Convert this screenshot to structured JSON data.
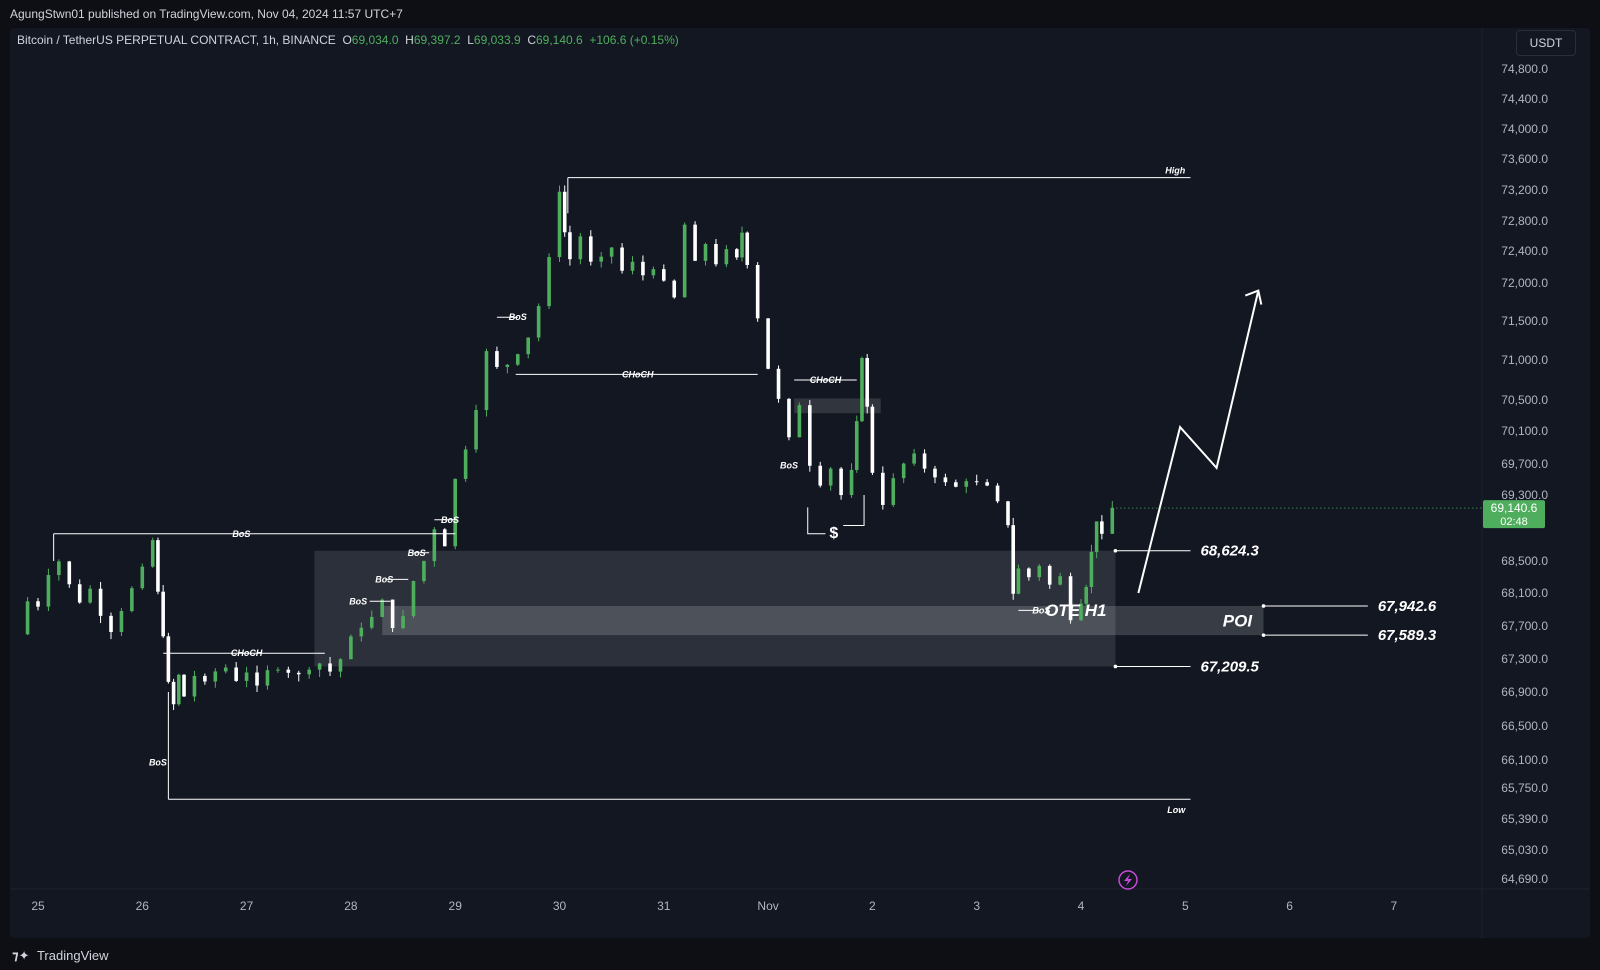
{
  "header": {
    "published_text": "AgungStwn01 published on TradingView.com, Nov 04, 2024 11:57 UTC+7"
  },
  "legend": {
    "symbol": "Bitcoin / TetherUS PERPETUAL CONTRACT, 1h, BINANCE",
    "o_label": "O",
    "o_value": "69,034.0",
    "h_label": "H",
    "h_value": "69,397.2",
    "l_label": "L",
    "l_value": "69,033.9",
    "c_label": "C",
    "c_value": "69,140.6",
    "change": "+106.6 (+0.15%)"
  },
  "currency": "USDT",
  "footer": {
    "brand": "TradingView"
  },
  "colors": {
    "up": "#4fae5d",
    "down": "#ffffff",
    "background": "#131722",
    "zone": "#ffffff"
  },
  "chart_data": {
    "type": "candlestick",
    "timeframe": "1h",
    "x_tick_labels": [
      "25",
      "26",
      "27",
      "28",
      "29",
      "30",
      "31",
      "Nov",
      "2",
      "3",
      "4",
      "5",
      "6",
      "7"
    ],
    "y_tick_labels": [
      "74,800.0",
      "74,400.0",
      "74,000.0",
      "73,600.0",
      "73,200.0",
      "72,800.0",
      "72,400.0",
      "72,000.0",
      "71,500.0",
      "71,000.0",
      "70,500.0",
      "70,100.0",
      "69,700.0",
      "69,300.0",
      "68,500.0",
      "68,100.0",
      "67,700.0",
      "67,300.0",
      "66,900.0",
      "66,500.0",
      "66,100.0",
      "65,750.0",
      "65,390.0",
      "65,030.0",
      "64,690.0"
    ],
    "current_price": {
      "value": "69,140.6",
      "countdown": "02:48"
    },
    "close_path": [
      [
        24.8,
        67600
      ],
      [
        24.9,
        68000
      ],
      [
        25.0,
        67950
      ],
      [
        25.1,
        68350
      ],
      [
        25.2,
        68500
      ],
      [
        25.3,
        68200
      ],
      [
        25.4,
        68000
      ],
      [
        25.5,
        68150
      ],
      [
        25.6,
        67850
      ],
      [
        25.7,
        67650
      ],
      [
        25.8,
        67900
      ],
      [
        25.9,
        68150
      ],
      [
        26.0,
        68400
      ],
      [
        26.1,
        68750
      ],
      [
        26.15,
        68100
      ],
      [
        26.2,
        67600
      ],
      [
        26.25,
        67000
      ],
      [
        26.3,
        66750
      ],
      [
        26.35,
        67100
      ],
      [
        26.4,
        66850
      ],
      [
        26.5,
        67100
      ],
      [
        26.6,
        67000
      ],
      [
        26.7,
        67150
      ],
      [
        26.8,
        67200
      ],
      [
        26.9,
        67050
      ],
      [
        27.0,
        67150
      ],
      [
        27.1,
        66950
      ],
      [
        27.2,
        67150
      ],
      [
        27.3,
        67200
      ],
      [
        27.4,
        67150
      ],
      [
        27.5,
        67100
      ],
      [
        27.6,
        67200
      ],
      [
        27.7,
        67250
      ],
      [
        27.8,
        67150
      ],
      [
        27.9,
        67300
      ],
      [
        28.0,
        67550
      ],
      [
        28.1,
        67700
      ],
      [
        28.2,
        67800
      ],
      [
        28.3,
        68000
      ],
      [
        28.4,
        67700
      ],
      [
        28.5,
        67800
      ],
      [
        28.6,
        68250
      ],
      [
        28.7,
        68500
      ],
      [
        28.8,
        68900
      ],
      [
        28.9,
        68700
      ],
      [
        29.0,
        69500
      ],
      [
        29.1,
        69900
      ],
      [
        29.2,
        70400
      ],
      [
        29.3,
        71100
      ],
      [
        29.4,
        70900
      ],
      [
        29.5,
        70950
      ],
      [
        29.6,
        71100
      ],
      [
        29.7,
        71300
      ],
      [
        29.8,
        71700
      ],
      [
        29.9,
        72300
      ],
      [
        30.0,
        73200
      ],
      [
        30.05,
        72650
      ],
      [
        30.1,
        72300
      ],
      [
        30.2,
        72600
      ],
      [
        30.3,
        72250
      ],
      [
        30.4,
        72300
      ],
      [
        30.5,
        72450
      ],
      [
        30.6,
        72150
      ],
      [
        30.7,
        72250
      ],
      [
        30.8,
        72100
      ],
      [
        30.9,
        72200
      ],
      [
        31.0,
        72000
      ],
      [
        31.1,
        71800
      ],
      [
        31.2,
        72750
      ],
      [
        31.3,
        72250
      ],
      [
        31.4,
        72500
      ],
      [
        31.5,
        72250
      ],
      [
        31.6,
        72400
      ],
      [
        31.7,
        72300
      ],
      [
        31.75,
        72650
      ],
      [
        31.8,
        72250
      ],
      [
        31.9,
        71550
      ],
      [
        32.0,
        70900
      ],
      [
        32.1,
        70500
      ],
      [
        32.2,
        70000
      ],
      [
        32.3,
        70450
      ],
      [
        32.4,
        69700
      ],
      [
        32.5,
        69450
      ],
      [
        32.6,
        69650
      ],
      [
        32.7,
        69300
      ],
      [
        32.8,
        69600
      ],
      [
        32.85,
        70200
      ],
      [
        32.9,
        71050
      ],
      [
        32.95,
        70400
      ],
      [
        33.0,
        69600
      ],
      [
        33.1,
        69200
      ],
      [
        33.2,
        69500
      ],
      [
        33.3,
        69700
      ],
      [
        33.4,
        69800
      ],
      [
        33.5,
        69650
      ],
      [
        33.6,
        69550
      ],
      [
        33.7,
        69450
      ],
      [
        33.8,
        69400
      ],
      [
        33.9,
        69500
      ],
      [
        34.0,
        69450
      ],
      [
        34.1,
        69400
      ],
      [
        34.2,
        69200
      ],
      [
        34.3,
        68950
      ],
      [
        34.35,
        68100
      ],
      [
        34.4,
        68400
      ],
      [
        34.5,
        68300
      ],
      [
        34.6,
        68450
      ],
      [
        34.7,
        68200
      ],
      [
        34.8,
        68300
      ],
      [
        34.9,
        67800
      ],
      [
        35.0,
        68000
      ],
      [
        35.05,
        68200
      ],
      [
        35.1,
        68600
      ],
      [
        35.15,
        69000
      ],
      [
        35.2,
        68800
      ],
      [
        35.3,
        69140.6
      ]
    ],
    "annotations": {
      "structure_labels": [
        "BoS",
        "BoS",
        "CHoCH",
        "BoS",
        "BoS",
        "BoS",
        "BoS",
        "BoS",
        "CHoCH",
        "CHoCH",
        "BoS",
        "BoS"
      ],
      "liquidity_label": "$",
      "high_label": "High",
      "low_label": "Low",
      "zone_labels": [
        "OTE H1",
        "POI"
      ],
      "price_levels": [
        {
          "label": "68,624.3",
          "value": 68624.3
        },
        {
          "label": "67,942.6",
          "value": 67942.6
        },
        {
          "label": "67,589.3",
          "value": 67589.3
        },
        {
          "label": "67,209.5",
          "value": 67209.5
        }
      ],
      "projection": [
        [
          35.55,
          68100
        ],
        [
          35.95,
          70150
        ],
        [
          36.3,
          69650
        ],
        [
          36.7,
          71900
        ]
      ]
    }
  }
}
